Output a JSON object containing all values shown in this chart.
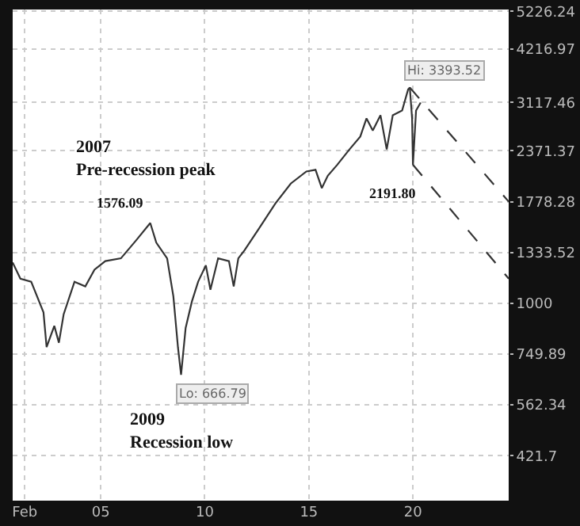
{
  "chart_data": {
    "type": "line",
    "log": "y",
    "grid": true,
    "marker": "none",
    "xlim": [
      2000.77,
      2024.6
    ],
    "xticks": [
      {
        "value": 2001.35,
        "label": "Feb"
      },
      {
        "value": 2005,
        "label": "05"
      },
      {
        "value": 2010,
        "label": "10"
      },
      {
        "value": 2015,
        "label": "15"
      },
      {
        "value": 2020,
        "label": "20"
      }
    ],
    "ylim": [
      327,
      5280
    ],
    "yticks": [
      421.7,
      562.34,
      749.89,
      1000,
      1333.52,
      1778.28,
      2371.37,
      3117.46,
      4216.97,
      5226.24
    ],
    "series": [
      {
        "color": "#333333",
        "line_style": "solid",
        "x": [
          2000.77,
          2001.14,
          2001.66,
          2002.25,
          2002.4,
          2002.77,
          2002.99,
          2003.22,
          2003.74,
          2004.26,
          2004.7,
          2005.22,
          2005.97,
          2006.71,
          2007.38,
          2007.67,
          2008.19,
          2008.49,
          2008.71,
          2008.86,
          2009.08,
          2009.38,
          2009.68,
          2010.05,
          2010.27,
          2010.64,
          2011.16,
          2011.39,
          2011.61,
          2011.91,
          2012.65,
          2013.39,
          2014.13,
          2014.88,
          2015.32,
          2015.62,
          2015.91,
          2016.36,
          2016.95,
          2017.47,
          2017.77,
          2018.07,
          2018.44,
          2018.74,
          2019.03,
          2019.48,
          2019.77,
          2019.85,
          2019.96,
          2020.0,
          2020.15,
          2020.37
        ],
        "values": [
          1260,
          1150,
          1130,
          950,
          780,
          880,
          800,
          940,
          1130,
          1100,
          1210,
          1270,
          1290,
          1430,
          1576.09,
          1410,
          1290,
          1040,
          780,
          666.79,
          870,
          1010,
          1130,
          1240,
          1080,
          1290,
          1270,
          1100,
          1290,
          1350,
          1540,
          1760,
          1970,
          2110,
          2130,
          1920,
          2060,
          2190,
          2390,
          2570,
          2850,
          2660,
          2900,
          2390,
          2900,
          2980,
          3360,
          3393.52,
          2850,
          2191.8,
          2980,
          3117.46
        ]
      },
      {
        "color": "#333333",
        "line_style": "dashed",
        "x": [
          2019.85,
          2024.6
        ],
        "values": [
          3393.52,
          1778.28
        ]
      },
      {
        "color": "#333333",
        "line_style": "dashed",
        "x": [
          2020.0,
          2024.6
        ],
        "values": [
          2191.8,
          1150
        ]
      }
    ],
    "annotations": [
      "2007\nPre-recession peak",
      {
        "text": "1576.09",
        "x": 2007.38,
        "y": 1576.09
      },
      {
        "text": "Hi: 3393.52",
        "x": 2019.85,
        "y": 3393.52
      },
      {
        "text": "2191.80",
        "x": 2020.0,
        "y": 2191.8
      },
      {
        "text": "Lo: 666.79",
        "x": 2008.86,
        "y": 666.79
      },
      "2009\nRecession low"
    ]
  }
}
